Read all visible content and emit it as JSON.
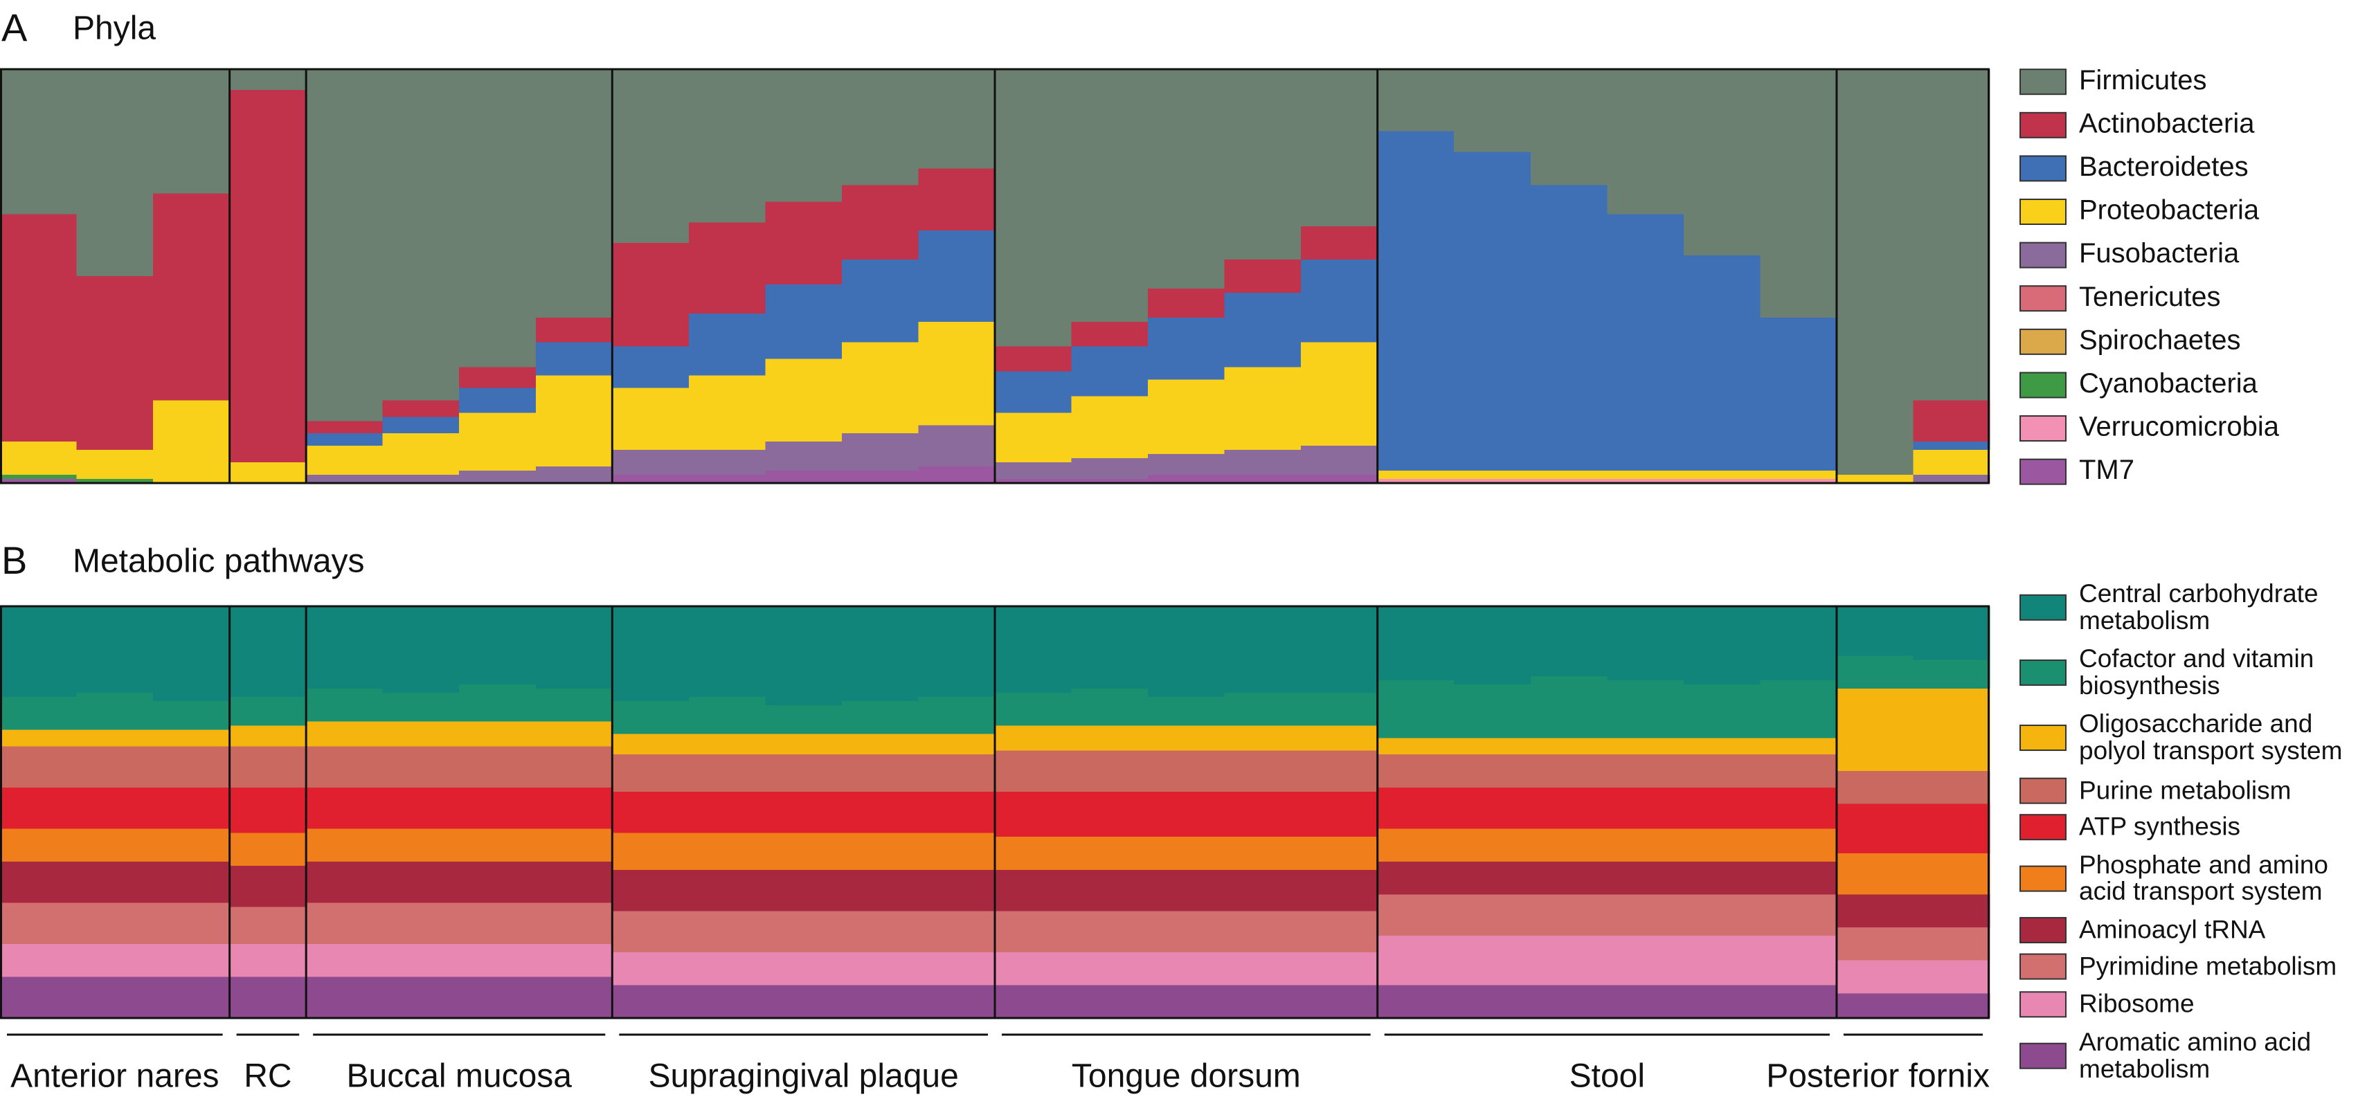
{
  "chart_data": [
    {
      "type": "bar",
      "stacked": true,
      "panel": "A",
      "title": "Phyla",
      "ylim": [
        0,
        100
      ],
      "series": [
        {
          "name": "Firmicutes",
          "color": "#6b8070",
          "values": [
            [
              35,
              50,
              30
            ],
            [
              5
            ],
            [
              85,
              80,
              72,
              60
            ],
            [
              42,
              37,
              32,
              28,
              24
            ],
            [
              67,
              61,
              53,
              46,
              38
            ],
            [
              15,
              20,
              28,
              35,
              45,
              60
            ],
            [
              98,
              80
            ]
          ]
        },
        {
          "name": "Actinobacteria",
          "color": "#c0334a",
          "values": [
            [
              55,
              42,
              50
            ],
            [
              90
            ],
            [
              3,
              4,
              5,
              6
            ],
            [
              25,
              22,
              20,
              18,
              15
            ],
            [
              6,
              6,
              7,
              8,
              8
            ],
            [
              0,
              0,
              0,
              0,
              0,
              0
            ],
            [
              0,
              10
            ]
          ]
        },
        {
          "name": "Bacteroidetes",
          "color": "#3f6fb5",
          "values": [
            [
              0,
              0,
              0
            ],
            [
              0
            ],
            [
              3,
              4,
              6,
              8
            ],
            [
              10,
              15,
              18,
              20,
              22
            ],
            [
              10,
              12,
              15,
              18,
              20
            ],
            [
              82,
              77,
              69,
              62,
              52,
              37
            ],
            [
              0,
              2
            ]
          ]
        },
        {
          "name": "Proteobacteria",
          "color": "#f9d01a",
          "values": [
            [
              8,
              7,
              20
            ],
            [
              5
            ],
            [
              7,
              10,
              14,
              22
            ],
            [
              15,
              18,
              20,
              22,
              25
            ],
            [
              12,
              15,
              18,
              20,
              25
            ],
            [
              2,
              2,
              2,
              2,
              2,
              2
            ],
            [
              2,
              6
            ]
          ]
        },
        {
          "name": "Fusobacteria",
          "color": "#8a6b9b",
          "values": [
            [
              0,
              0,
              0
            ],
            [
              0
            ],
            [
              2,
              2,
              3,
              4
            ],
            [
              6,
              6,
              7,
              9,
              10
            ],
            [
              4,
              5,
              5,
              6,
              7
            ],
            [
              0,
              0,
              0,
              0,
              0,
              0
            ],
            [
              0,
              2
            ]
          ]
        },
        {
          "name": "Tenericutes",
          "color": "#d96b78",
          "values": [
            [
              0,
              0,
              0
            ],
            [
              0
            ],
            [
              0,
              0,
              0,
              0
            ],
            [
              0,
              0,
              0,
              0,
              0
            ],
            [
              0,
              0,
              0,
              0,
              0
            ],
            [
              0,
              0,
              0,
              0,
              0,
              0
            ],
            [
              0,
              0
            ]
          ]
        },
        {
          "name": "Spirochaetes",
          "color": "#dba84a",
          "values": [
            [
              0,
              0,
              0
            ],
            [
              0
            ],
            [
              0,
              0,
              0,
              0
            ],
            [
              0,
              0,
              0,
              0,
              0
            ],
            [
              0,
              0,
              0,
              0,
              0
            ],
            [
              0,
              0,
              0,
              0,
              0,
              0
            ],
            [
              0,
              0
            ]
          ]
        },
        {
          "name": "Cyanobacteria",
          "color": "#3e9a44",
          "values": [
            [
              1,
              1,
              0
            ],
            [
              0
            ],
            [
              0,
              0,
              0,
              0
            ],
            [
              0,
              0,
              0,
              0,
              0
            ],
            [
              0,
              0,
              0,
              0,
              0
            ],
            [
              0,
              0,
              0,
              0,
              0,
              0
            ],
            [
              0,
              0
            ]
          ]
        },
        {
          "name": "Verrucomicrobia",
          "color": "#f291b3",
          "values": [
            [
              0,
              0,
              0
            ],
            [
              0
            ],
            [
              0,
              0,
              0,
              0
            ],
            [
              0,
              0,
              0,
              0,
              0
            ],
            [
              0,
              0,
              0,
              0,
              0
            ],
            [
              1,
              1,
              1,
              1,
              1,
              1
            ],
            [
              0,
              0
            ]
          ]
        },
        {
          "name": "TM7",
          "color": "#9b58a0",
          "values": [
            [
              1,
              0,
              0
            ],
            [
              0
            ],
            [
              0,
              0,
              0,
              0
            ],
            [
              2,
              2,
              3,
              3,
              4
            ],
            [
              1,
              1,
              2,
              2,
              2
            ],
            [
              0,
              0,
              0,
              0,
              0,
              0
            ],
            [
              0,
              0
            ]
          ]
        }
      ]
    },
    {
      "type": "bar",
      "stacked": true,
      "panel": "B",
      "title": "Metabolic pathways",
      "ylim": [
        0,
        100
      ],
      "categories": [
        "Anterior nares",
        "RC",
        "Buccal mucosa",
        "Supragingival plaque",
        "Tongue dorsum",
        "Stool",
        "Posterior fornix"
      ],
      "series": [
        {
          "name": "Central carbohydrate metabolism",
          "color": "#12857a",
          "values": [
            [
              22,
              21,
              23
            ],
            [
              22
            ],
            [
              20,
              21,
              19,
              20
            ],
            [
              23,
              22,
              24,
              23,
              22
            ],
            [
              21,
              20,
              22,
              21,
              21
            ],
            [
              18,
              19,
              17,
              18,
              19,
              18
            ],
            [
              12,
              13
            ]
          ]
        },
        {
          "name": "Cofactor and vitamin biosynthesis",
          "color": "#1a9070",
          "values": [
            [
              8,
              9,
              7
            ],
            [
              7
            ],
            [
              8,
              7,
              9,
              8
            ],
            [
              8,
              9,
              7,
              8,
              9
            ],
            [
              8,
              9,
              7,
              8,
              8
            ],
            [
              14,
              13,
              15,
              14,
              13,
              14
            ],
            [
              8,
              7
            ]
          ]
        },
        {
          "name": "Oligosaccharide and polyol transport system",
          "color": "#f5b50e",
          "values": [
            [
              4,
              4,
              4
            ],
            [
              5
            ],
            [
              6,
              6,
              6,
              6
            ],
            [
              5,
              5,
              5,
              5,
              5
            ],
            [
              6,
              6,
              6,
              6,
              6
            ],
            [
              4,
              4,
              4,
              4,
              4,
              4
            ],
            [
              20,
              20
            ]
          ]
        },
        {
          "name": "Purine metabolism",
          "color": "#c9695f",
          "values": [
            [
              10,
              10,
              10
            ],
            [
              10
            ],
            [
              10,
              10,
              10,
              10
            ],
            [
              9,
              9,
              9,
              9,
              9
            ],
            [
              10,
              10,
              10,
              10,
              10
            ],
            [
              8,
              8,
              8,
              8,
              8,
              8
            ],
            [
              8,
              8
            ]
          ]
        },
        {
          "name": "ATP synthesis",
          "color": "#e0202f",
          "values": [
            [
              10,
              10,
              10
            ],
            [
              11
            ],
            [
              10,
              10,
              10,
              10
            ],
            [
              10,
              10,
              10,
              10,
              10
            ],
            [
              11,
              11,
              11,
              11,
              11
            ],
            [
              10,
              10,
              10,
              10,
              10,
              10
            ],
            [
              12,
              12
            ]
          ]
        },
        {
          "name": "Phosphate and amino acid transport system",
          "color": "#f07e1a",
          "values": [
            [
              8,
              8,
              8
            ],
            [
              8
            ],
            [
              8,
              8,
              8,
              8
            ],
            [
              9,
              9,
              9,
              9,
              9
            ],
            [
              8,
              8,
              8,
              8,
              8
            ],
            [
              8,
              8,
              8,
              8,
              8,
              8
            ],
            [
              10,
              10
            ]
          ]
        },
        {
          "name": "Aminoacyl tRNA",
          "color": "#a8283f",
          "values": [
            [
              10,
              10,
              10
            ],
            [
              10
            ],
            [
              10,
              10,
              10,
              10
            ],
            [
              10,
              10,
              10,
              10,
              10
            ],
            [
              10,
              10,
              10,
              10,
              10
            ],
            [
              8,
              8,
              8,
              8,
              8,
              8
            ],
            [
              8,
              8
            ]
          ]
        },
        {
          "name": "Pyrimidine metabolism",
          "color": "#d27070",
          "values": [
            [
              10,
              10,
              10
            ],
            [
              9
            ],
            [
              10,
              10,
              10,
              10
            ],
            [
              10,
              10,
              10,
              10,
              10
            ],
            [
              10,
              10,
              10,
              10,
              10
            ],
            [
              10,
              10,
              10,
              10,
              10,
              10
            ],
            [
              8,
              8
            ]
          ]
        },
        {
          "name": "Ribosome",
          "color": "#e987b3",
          "values": [
            [
              8,
              8,
              8
            ],
            [
              8
            ],
            [
              8,
              8,
              8,
              8
            ],
            [
              8,
              8,
              8,
              8,
              8
            ],
            [
              8,
              8,
              8,
              8,
              8
            ],
            [
              12,
              12,
              12,
              12,
              12,
              12
            ],
            [
              8,
              8
            ]
          ]
        },
        {
          "name": "Aromatic amino acid metabolism",
          "color": "#8e4a8e",
          "values": [
            [
              10,
              10,
              10
            ],
            [
              10
            ],
            [
              10,
              10,
              10,
              10
            ],
            [
              8,
              8,
              8,
              8,
              8
            ],
            [
              8,
              8,
              8,
              8,
              8
            ],
            [
              8,
              8,
              8,
              8,
              8,
              8
            ],
            [
              6,
              6
            ]
          ]
        }
      ]
    }
  ]
}
